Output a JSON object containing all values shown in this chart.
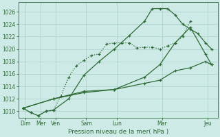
{
  "background_color": "#ceeae6",
  "grid_color": "#aacfca",
  "line_color": "#2d6a35",
  "xlabel": "Pression niveau de la mer( hPa )",
  "ylim": [
    1009,
    1027.5
  ],
  "xlim": [
    -0.15,
    6.4
  ],
  "yticks": [
    1010,
    1012,
    1014,
    1016,
    1018,
    1020,
    1022,
    1024,
    1026
  ],
  "xtick_labels": [
    "Dim",
    "Mer",
    "Ven",
    "Sam",
    "Lun",
    "Mar",
    "Jeu"
  ],
  "xtick_positions": [
    0.08,
    0.58,
    1.08,
    2.08,
    3.08,
    4.58,
    6.08
  ],
  "line1_dotted": {
    "x": [
      0,
      0.25,
      0.5,
      0.75,
      1.0,
      1.25,
      1.5,
      1.75,
      2.0,
      2.25,
      2.5,
      2.75,
      3.0,
      3.25,
      3.5,
      3.75,
      4.0,
      4.25,
      4.5,
      4.75,
      5.0,
      5.25,
      5.5
    ],
    "y": [
      1010.5,
      1009.8,
      1009.3,
      1010.0,
      1010.2,
      1012.5,
      1015.5,
      1017.3,
      1018.2,
      1019.0,
      1019.2,
      1020.8,
      1021.0,
      1021.0,
      1021.0,
      1020.2,
      1020.3,
      1020.3,
      1020.0,
      1020.5,
      1021.0,
      1022.0,
      1024.5
    ]
  },
  "line2_solid_peak": {
    "x": [
      0,
      0.25,
      0.5,
      0.75,
      1.0,
      1.5,
      2.0,
      2.5,
      3.0,
      3.5,
      4.0,
      4.25,
      4.5,
      4.75,
      5.0,
      5.25,
      5.5,
      5.75,
      6.0,
      6.2
    ],
    "y": [
      1010.5,
      1009.8,
      1009.3,
      1010.0,
      1010.2,
      1012.0,
      1015.8,
      1018.0,
      1020.0,
      1022.2,
      1024.5,
      1026.5,
      1026.5,
      1026.5,
      1025.5,
      1024.0,
      1023.2,
      1022.5,
      1021.0,
      1020.0
    ]
  },
  "line3_solid_mid": {
    "x": [
      0,
      1.0,
      2.0,
      3.0,
      4.0,
      4.5,
      5.0,
      5.5,
      6.0,
      6.2
    ],
    "y": [
      1010.5,
      1012.0,
      1013.0,
      1013.5,
      1014.5,
      1015.0,
      1016.5,
      1017.0,
      1018.0,
      1017.5
    ]
  },
  "line4_solid_top": {
    "x": [
      0,
      1.0,
      2.0,
      3.0,
      4.0,
      4.5,
      5.0,
      5.5,
      6.0,
      6.2
    ],
    "y": [
      1010.5,
      1012.0,
      1013.2,
      1013.5,
      1015.5,
      1017.5,
      1021.0,
      1023.5,
      1019.2,
      1017.5
    ]
  }
}
